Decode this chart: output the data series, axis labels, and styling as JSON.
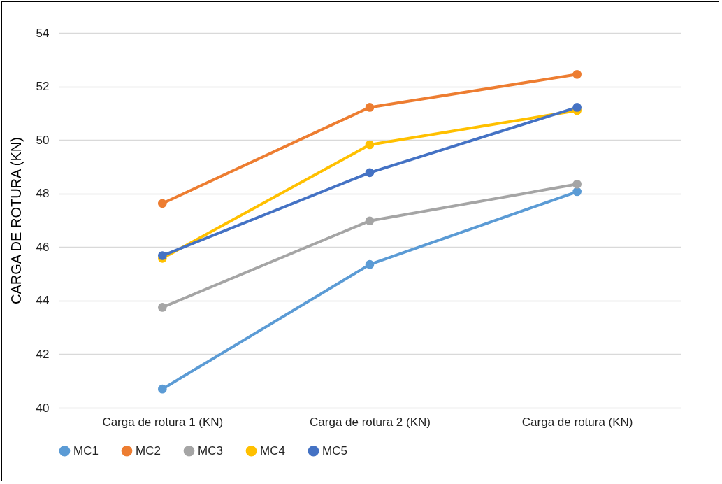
{
  "chart_data": {
    "type": "line",
    "ylabel": "CARGA DE ROTURA (KN)",
    "categories": [
      "Carga de rotura 1 (KN)",
      "Carga de rotura 2 (KN)",
      "Carga de rotura (KN)"
    ],
    "series": [
      {
        "name": "MC1",
        "color": "#5b9bd5",
        "values": [
          40.7,
          45.35,
          48.07
        ]
      },
      {
        "name": "MC2",
        "color": "#ed7d31",
        "values": [
          47.63,
          51.22,
          52.45
        ]
      },
      {
        "name": "MC3",
        "color": "#a5a5a5",
        "values": [
          43.75,
          46.98,
          48.35
        ]
      },
      {
        "name": "MC4",
        "color": "#ffc000",
        "values": [
          45.58,
          49.82,
          51.1
        ]
      },
      {
        "name": "MC5",
        "color": "#4472c4",
        "values": [
          45.68,
          48.78,
          51.22
        ]
      }
    ],
    "ylim": [
      40,
      54
    ],
    "yticks": [
      40,
      42,
      44,
      46,
      48,
      50,
      52,
      54
    ],
    "grid": "y",
    "legend": "bottom",
    "marker": "circle"
  }
}
